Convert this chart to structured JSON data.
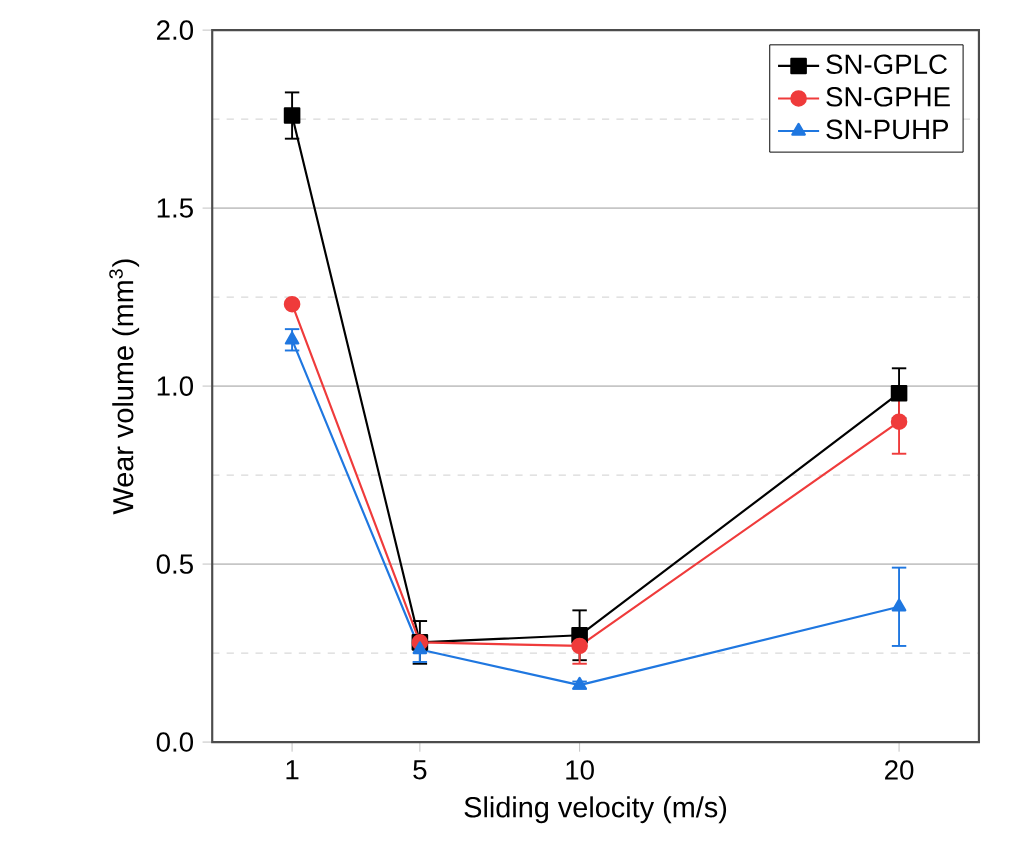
{
  "chart_data": {
    "type": "line",
    "xlabel": "Sliding velocity (m/s)",
    "ylabel": "Wear volume (mm$^{3}$)",
    "x": [
      1,
      5,
      10,
      20
    ],
    "xlim": [
      -1.5,
      22.5
    ],
    "xticks": [
      1,
      5,
      10,
      20
    ],
    "ylim": [
      0,
      2
    ],
    "yticks": [
      {
        "value": 0,
        "label": "0.0"
      },
      0.5,
      {
        "value": 1,
        "label": "1.0"
      },
      1.5,
      {
        "value": 2,
        "label": "2.0"
      }
    ],
    "grid": "y",
    "legend": "top right",
    "series": [
      {
        "name": "SN-GPLC",
        "color": "#000000",
        "marker": "square",
        "values": [
          1.76,
          0.28,
          0.3,
          0.98
        ],
        "errors": [
          0.065,
          0.06,
          0.07,
          0.07
        ]
      },
      {
        "name": "SN-GPHE",
        "color": "#ef3b3b",
        "marker": "circle",
        "values": [
          1.23,
          0.28,
          0.27,
          0.9
        ],
        "errors": [
          null,
          null,
          0.05,
          0.09
        ]
      },
      {
        "name": "SN-PUHP",
        "color": "#1f77e0",
        "marker": "triangle",
        "values": [
          1.13,
          0.26,
          0.16,
          0.38
        ],
        "errors": [
          0.03,
          0.035,
          0.01,
          0.11
        ]
      }
    ]
  }
}
